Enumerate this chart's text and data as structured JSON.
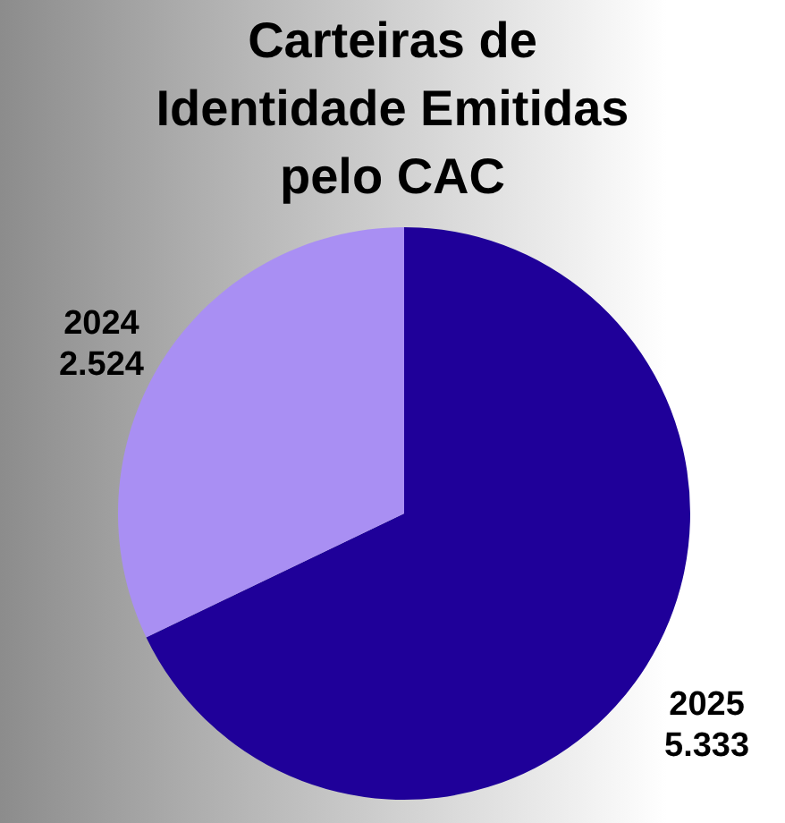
{
  "chart_data": {
    "type": "pie",
    "title": "Carteiras de\nIdentidade Emitidas\npelo CAC",
    "categories": [
      "2025",
      "2024"
    ],
    "values": [
      5333,
      2524
    ],
    "colors": [
      "#1f0099",
      "#a98ff3"
    ],
    "value_labels": [
      "5.333",
      "2.524"
    ]
  }
}
